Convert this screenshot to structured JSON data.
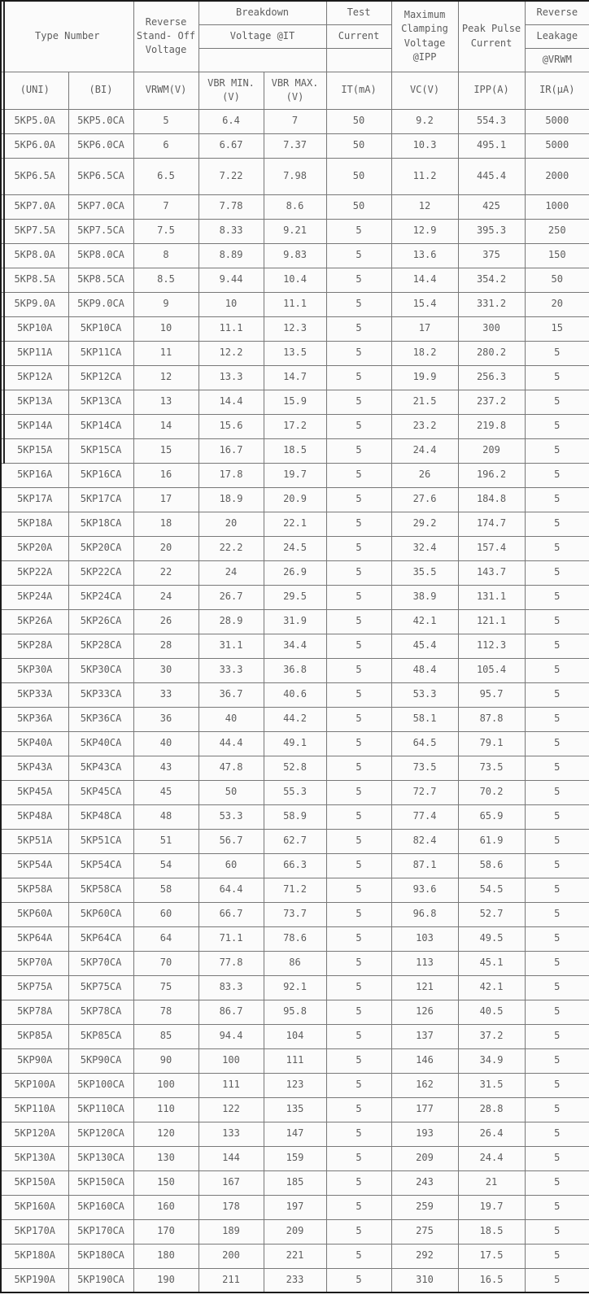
{
  "table": {
    "header_groups": {
      "type_number": "Type Number",
      "reverse_standoff": "Reverse\nStand- Off\nVoltage",
      "breakdown_row1": "Breakdown",
      "breakdown_row2": "Voltage @IT",
      "breakdown_row3": "",
      "test_row1": "Test",
      "test_row2": "Current",
      "test_row3": "",
      "max_clamping": "Maximum\nClamping\nVoltage\n@IPP",
      "peak_pulse": "Peak Pulse\nCurrent",
      "reverse_leakage_row1": "Reverse",
      "reverse_leakage_row2": "Leakage",
      "reverse_leakage_row3": "@VRWM"
    },
    "columns": [
      "(UNI)",
      "(BI)",
      "VRWM(V)",
      "VBR MIN.(V)",
      "VBR MAX.(V)",
      "IT(mA)",
      "VC(V)",
      "IPP(A)",
      "IR(μA)"
    ],
    "rows": [
      [
        "5KP5.0A",
        "5KP5.0CA",
        "5",
        "6.4",
        "7",
        "50",
        "9.2",
        "554.3",
        "5000"
      ],
      [
        "5KP6.0A",
        "5KP6.0CA",
        "6",
        "6.67",
        "7.37",
        "50",
        "10.3",
        "495.1",
        "5000"
      ],
      [
        "5KP6.5A",
        "5KP6.5CA",
        "6.5",
        "7.22",
        "7.98",
        "50",
        "11.2",
        "445.4",
        "2000"
      ],
      [
        "5KP7.0A",
        "5KP7.0CA",
        "7",
        "7.78",
        "8.6",
        "50",
        "12",
        "425",
        "1000"
      ],
      [
        "5KP7.5A",
        "5KP7.5CA",
        "7.5",
        "8.33",
        "9.21",
        "5",
        "12.9",
        "395.3",
        "250"
      ],
      [
        "5KP8.0A",
        "5KP8.0CA",
        "8",
        "8.89",
        "9.83",
        "5",
        "13.6",
        "375",
        "150"
      ],
      [
        "5KP8.5A",
        "5KP8.5CA",
        "8.5",
        "9.44",
        "10.4",
        "5",
        "14.4",
        "354.2",
        "50"
      ],
      [
        "5KP9.0A",
        "5KP9.0CA",
        "9",
        "10",
        "11.1",
        "5",
        "15.4",
        "331.2",
        "20"
      ],
      [
        "5KP10A",
        "5KP10CA",
        "10",
        "11.1",
        "12.3",
        "5",
        "17",
        "300",
        "15"
      ],
      [
        "5KP11A",
        "5KP11CA",
        "11",
        "12.2",
        "13.5",
        "5",
        "18.2",
        "280.2",
        "5"
      ],
      [
        "5KP12A",
        "5KP12CA",
        "12",
        "13.3",
        "14.7",
        "5",
        "19.9",
        "256.3",
        "5"
      ],
      [
        "5KP13A",
        "5KP13CA",
        "13",
        "14.4",
        "15.9",
        "5",
        "21.5",
        "237.2",
        "5"
      ],
      [
        "5KP14A",
        "5KP14CA",
        "14",
        "15.6",
        "17.2",
        "5",
        "23.2",
        "219.8",
        "5"
      ],
      [
        "5KP15A",
        "5KP15CA",
        "15",
        "16.7",
        "18.5",
        "5",
        "24.4",
        "209",
        "5"
      ],
      [
        "5KP16A",
        "5KP16CA",
        "16",
        "17.8",
        "19.7",
        "5",
        "26",
        "196.2",
        "5"
      ],
      [
        "5KP17A",
        "5KP17CA",
        "17",
        "18.9",
        "20.9",
        "5",
        "27.6",
        "184.8",
        "5"
      ],
      [
        "5KP18A",
        "5KP18CA",
        "18",
        "20",
        "22.1",
        "5",
        "29.2",
        "174.7",
        "5"
      ],
      [
        "5KP20A",
        "5KP20CA",
        "20",
        "22.2",
        "24.5",
        "5",
        "32.4",
        "157.4",
        "5"
      ],
      [
        "5KP22A",
        "5KP22CA",
        "22",
        "24",
        "26.9",
        "5",
        "35.5",
        "143.7",
        "5"
      ],
      [
        "5KP24A",
        "5KP24CA",
        "24",
        "26.7",
        "29.5",
        "5",
        "38.9",
        "131.1",
        "5"
      ],
      [
        "5KP26A",
        "5KP26CA",
        "26",
        "28.9",
        "31.9",
        "5",
        "42.1",
        "121.1",
        "5"
      ],
      [
        "5KP28A",
        "5KP28CA",
        "28",
        "31.1",
        "34.4",
        "5",
        "45.4",
        "112.3",
        "5"
      ],
      [
        "5KP30A",
        "5KP30CA",
        "30",
        "33.3",
        "36.8",
        "5",
        "48.4",
        "105.4",
        "5"
      ],
      [
        "5KP33A",
        "5KP33CA",
        "33",
        "36.7",
        "40.6",
        "5",
        "53.3",
        "95.7",
        "5"
      ],
      [
        "5KP36A",
        "5KP36CA",
        "36",
        "40",
        "44.2",
        "5",
        "58.1",
        "87.8",
        "5"
      ],
      [
        "5KP40A",
        "5KP40CA",
        "40",
        "44.4",
        "49.1",
        "5",
        "64.5",
        "79.1",
        "5"
      ],
      [
        "5KP43A",
        "5KP43CA",
        "43",
        "47.8",
        "52.8",
        "5",
        "73.5",
        "73.5",
        "5"
      ],
      [
        "5KP45A",
        "5KP45CA",
        "45",
        "50",
        "55.3",
        "5",
        "72.7",
        "70.2",
        "5"
      ],
      [
        "5KP48A",
        "5KP48CA",
        "48",
        "53.3",
        "58.9",
        "5",
        "77.4",
        "65.9",
        "5"
      ],
      [
        "5KP51A",
        "5KP51CA",
        "51",
        "56.7",
        "62.7",
        "5",
        "82.4",
        "61.9",
        "5"
      ],
      [
        "5KP54A",
        "5KP54CA",
        "54",
        "60",
        "66.3",
        "5",
        "87.1",
        "58.6",
        "5"
      ],
      [
        "5KP58A",
        "5KP58CA",
        "58",
        "64.4",
        "71.2",
        "5",
        "93.6",
        "54.5",
        "5"
      ],
      [
        "5KP60A",
        "5KP60CA",
        "60",
        "66.7",
        "73.7",
        "5",
        "96.8",
        "52.7",
        "5"
      ],
      [
        "5KP64A",
        "5KP64CA",
        "64",
        "71.1",
        "78.6",
        "5",
        "103",
        "49.5",
        "5"
      ],
      [
        "5KP70A",
        "5KP70CA",
        "70",
        "77.8",
        "86",
        "5",
        "113",
        "45.1",
        "5"
      ],
      [
        "5KP75A",
        "5KP75CA",
        "75",
        "83.3",
        "92.1",
        "5",
        "121",
        "42.1",
        "5"
      ],
      [
        "5KP78A",
        "5KP78CA",
        "78",
        "86.7",
        "95.8",
        "5",
        "126",
        "40.5",
        "5"
      ],
      [
        "5KP85A",
        "5KP85CA",
        "85",
        "94.4",
        "104",
        "5",
        "137",
        "37.2",
        "5"
      ],
      [
        "5KP90A",
        "5KP90CA",
        "90",
        "100",
        "111",
        "5",
        "146",
        "34.9",
        "5"
      ],
      [
        "5KP100A",
        "5KP100CA",
        "100",
        "111",
        "123",
        "5",
        "162",
        "31.5",
        "5"
      ],
      [
        "5KP110A",
        "5KP110CA",
        "110",
        "122",
        "135",
        "5",
        "177",
        "28.8",
        "5"
      ],
      [
        "5KP120A",
        "5KP120CA",
        "120",
        "133",
        "147",
        "5",
        "193",
        "26.4",
        "5"
      ],
      [
        "5KP130A",
        "5KP130CA",
        "130",
        "144",
        "159",
        "5",
        "209",
        "24.4",
        "5"
      ],
      [
        "5KP150A",
        "5KP150CA",
        "150",
        "167",
        "185",
        "5",
        "243",
        "21",
        "5"
      ],
      [
        "5KP160A",
        "5KP160CA",
        "160",
        "178",
        "197",
        "5",
        "259",
        "19.7",
        "5"
      ],
      [
        "5KP170A",
        "5KP170CA",
        "170",
        "189",
        "209",
        "5",
        "275",
        "18.5",
        "5"
      ],
      [
        "5KP180A",
        "5KP180CA",
        "180",
        "200",
        "221",
        "5",
        "292",
        "17.5",
        "5"
      ],
      [
        "5KP190A",
        "5KP190CA",
        "190",
        "211",
        "233",
        "5",
        "310",
        "16.5",
        "5"
      ]
    ]
  },
  "layout_hints": {
    "tall_row_type": "5KP6.5A"
  },
  "colors": {
    "outer_border": "#1a1a1a",
    "grid": "#787878",
    "text": "#5d5d5d",
    "background": "#fbfbfb"
  }
}
